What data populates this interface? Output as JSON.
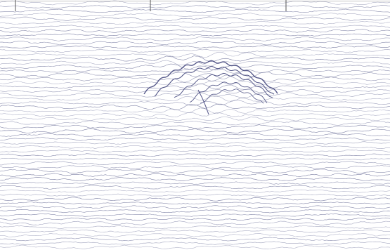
{
  "image": {
    "kind": "ground-penetrating radar radargram (wiggle traces)",
    "trace_color": "#5a5e8c",
    "top_tick_marks": 3,
    "printed_text": []
  }
}
